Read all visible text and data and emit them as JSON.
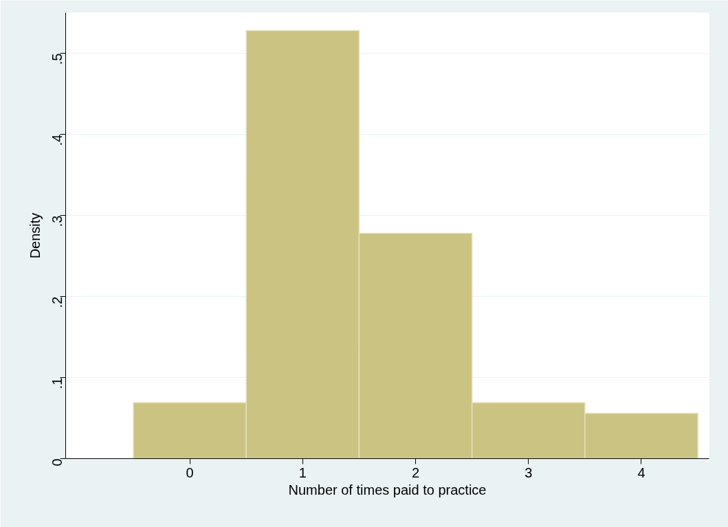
{
  "chart_data": {
    "type": "histogram",
    "xlabel": "Number of times paid to practice",
    "ylabel": "Density",
    "bins": [
      -0.5,
      0.5,
      1.5,
      2.5,
      3.5,
      4.5
    ],
    "values": [
      0.069,
      0.528,
      0.278,
      0.069,
      0.056
    ],
    "color": "#cbc382",
    "xlim": [
      -1.1,
      4.6
    ],
    "xticks": [
      0,
      1,
      2,
      3,
      4
    ],
    "ylim": [
      0,
      0.55
    ],
    "yticks": [
      {
        "value": 0,
        "label": "0"
      },
      {
        "value": 0.1,
        "label": ".1"
      },
      {
        "value": 0.2,
        "label": ".2"
      },
      {
        "value": 0.3,
        "label": ".3"
      },
      {
        "value": 0.4,
        "label": ".4"
      },
      {
        "value": 0.5,
        "label": ".5"
      }
    ],
    "grid": "y"
  }
}
